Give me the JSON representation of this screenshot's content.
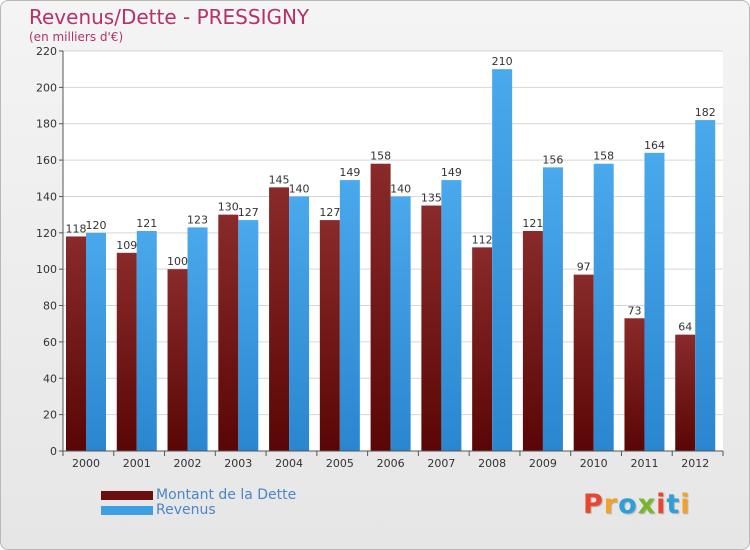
{
  "header": {
    "title": "Revenus/Dette - PRESSIGNY",
    "subtitle": "(en milliers d'€)"
  },
  "logo": {
    "text": "Proxiti",
    "colors": [
      "#e8462f",
      "#f3a12b",
      "#2f9fd8",
      "#79b62c",
      "#e8462f",
      "#2f9fd8",
      "#f3a12b"
    ]
  },
  "chart_data": {
    "type": "bar",
    "title": "Revenus/Dette - PRESSIGNY",
    "ylabel": "(en milliers d'€)",
    "categories": [
      "2000",
      "2001",
      "2002",
      "2003",
      "2004",
      "2005",
      "2006",
      "2007",
      "2008",
      "2009",
      "2010",
      "2011",
      "2012"
    ],
    "series": [
      {
        "name": "Montant de la Dette",
        "color": "#7a1a1a",
        "values": [
          118,
          109,
          100,
          130,
          145,
          127,
          158,
          135,
          112,
          121,
          97,
          73,
          64
        ]
      },
      {
        "name": "Revenus",
        "color": "#3f9fe4",
        "values": [
          120,
          121,
          123,
          127,
          140,
          149,
          140,
          149,
          210,
          156,
          158,
          164,
          182
        ]
      }
    ],
    "yticks": [
      0,
      20,
      40,
      60,
      80,
      100,
      120,
      140,
      160,
      180,
      200,
      220
    ],
    "ylim": [
      0,
      220
    ],
    "grid": true,
    "legend": "bottom-left"
  }
}
